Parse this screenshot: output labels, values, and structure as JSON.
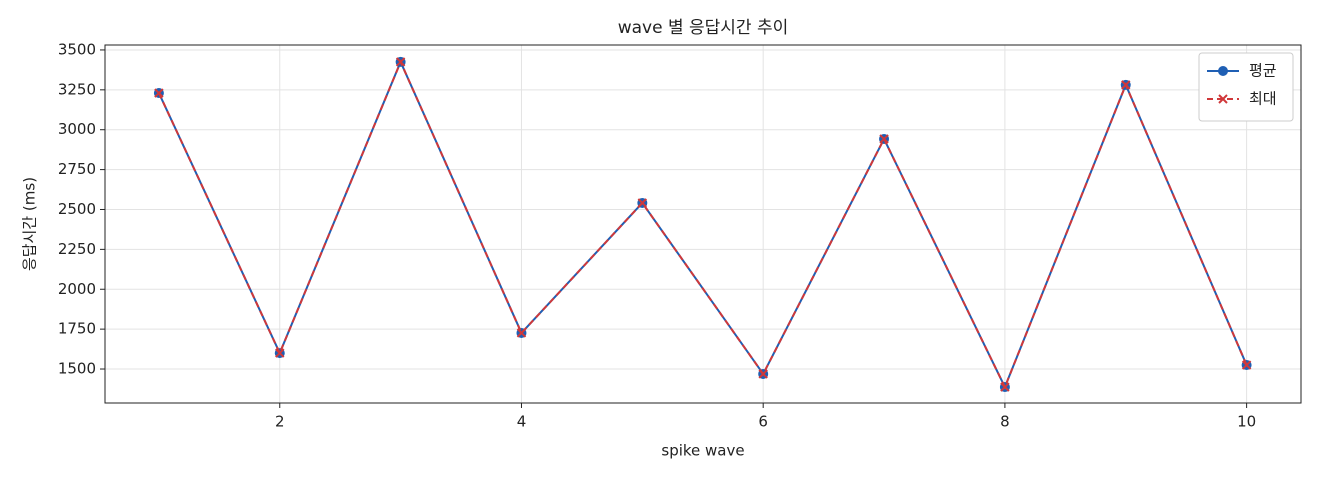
{
  "chart_data": {
    "type": "line",
    "title": "wave 별 응답시간 추이",
    "x_label": "spike wave",
    "y_label": "응답시간 (ms)",
    "x": [
      1,
      2,
      3,
      4,
      5,
      6,
      7,
      8,
      9,
      10
    ],
    "series": [
      {
        "name": "평균",
        "color": "#1f5fb4",
        "marker": "o",
        "linestyle": "solid",
        "values": [
          3230,
          1600,
          3425,
          1726,
          2541,
          1469,
          2942,
          1387,
          3281,
          1525
        ]
      },
      {
        "name": "최대",
        "color": "#d0383a",
        "marker": "x",
        "linestyle": "dashed",
        "values": [
          3230,
          1600,
          3425,
          1726,
          2541,
          1469,
          2942,
          1387,
          3281,
          1525
        ]
      }
    ],
    "xlim": [
      0.554,
      10.45
    ],
    "xticks": [
      2,
      4,
      6,
      8,
      10
    ],
    "ylim": [
      1287,
      3531
    ],
    "yticks": [
      1500,
      1750,
      2000,
      2250,
      2500,
      2750,
      3000,
      3250,
      3500
    ],
    "grid": true,
    "legend": "upper right"
  }
}
